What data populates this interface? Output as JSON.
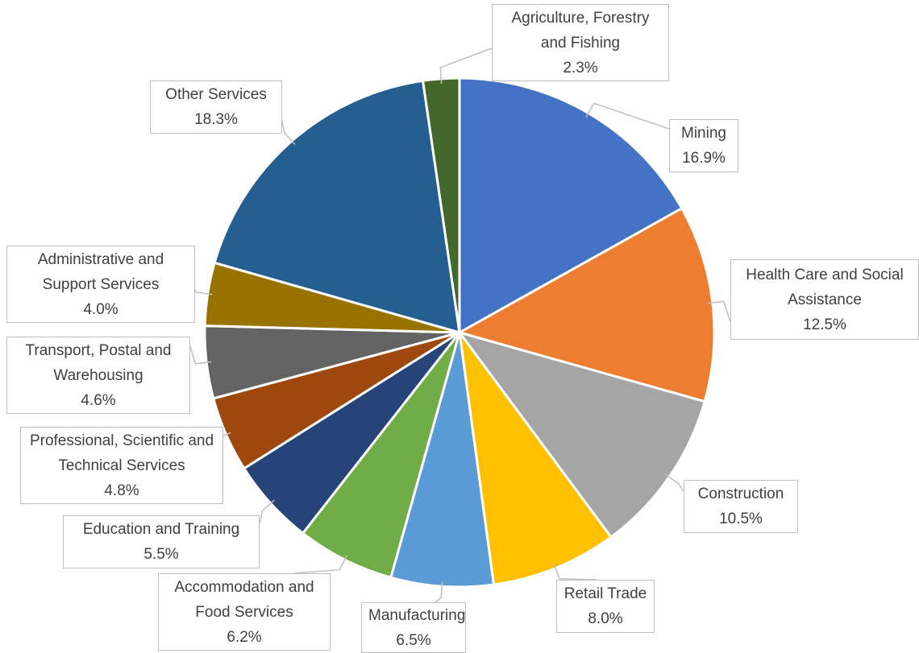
{
  "chart_data": {
    "type": "pie",
    "categories": [
      "Mining",
      "Health Care and Social Assistance",
      "Construction",
      "Retail Trade",
      "Manufacturing",
      "Accommodation and Food Services",
      "Education and Training",
      "Professional, Scientific and Technical Services",
      "Transport, Postal and Warehousing",
      "Administrative and Support Services",
      "Other Services",
      "Agriculture, Forestry and Fishing"
    ],
    "values": [
      16.9,
      12.5,
      10.5,
      8.0,
      6.5,
      6.2,
      5.5,
      4.8,
      4.6,
      4.0,
      18.3,
      2.3
    ],
    "value_labels": [
      "16.9%",
      "12.5%",
      "10.5%",
      "8.0%",
      "6.5%",
      "6.2%",
      "5.5%",
      "4.8%",
      "4.6%",
      "4.0%",
      "18.3%",
      "2.3%"
    ],
    "colors": [
      "#4472c4",
      "#ed7d31",
      "#a5a5a5",
      "#ffc000",
      "#5b9bd5",
      "#70ad47",
      "#264478",
      "#9e480e",
      "#636363",
      "#997300",
      "#255e91",
      "#43682b"
    ]
  }
}
